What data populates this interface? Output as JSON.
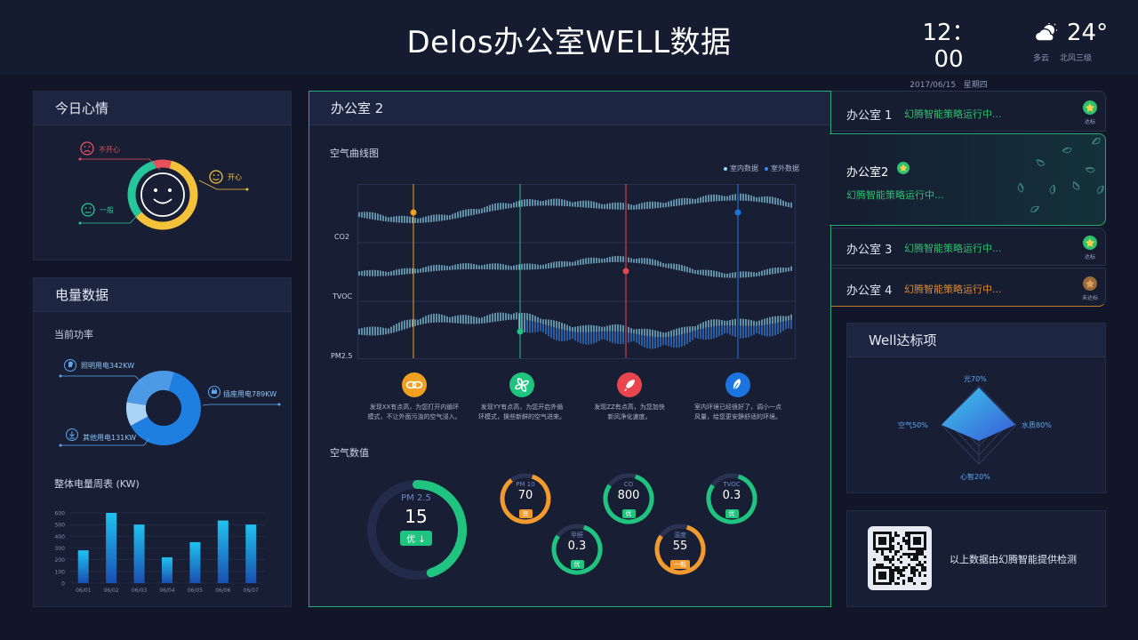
{
  "header": {
    "title": "Delos办公室WELL数据",
    "time": "12：00",
    "date": "2017/06/15",
    "weekday": "星期四",
    "temperature": "24°",
    "weather": "多云",
    "wind": "北风三级",
    "weather_icon": "cloud-sun-icon"
  },
  "mood": {
    "title": "今日心情",
    "labels": {
      "unhappy": "不开心",
      "happy": "开心",
      "neutral": "一般"
    },
    "share": {
      "unhappy": 0.08,
      "neutral": 0.32,
      "happy": 0.6
    },
    "colors": {
      "unhappy": "#e8505b",
      "happy": "#f3c23a",
      "neutral": "#27c59a"
    }
  },
  "power": {
    "title": "电量数据",
    "current_label": "当前功率",
    "lighting": "照明用电342KW",
    "socket": "插座用电789KW",
    "other": "其他用电131KW",
    "weekly_title": "整体电量周表 (KW)",
    "donut_values": [
      342,
      789,
      131
    ]
  },
  "office_main": {
    "title": "办公室 2",
    "curve_title": "空气曲线图",
    "legend_indoor": "室内数据",
    "legend_outdoor": "室外数据",
    "row_labels": [
      "CO2",
      "TVOC",
      "PM2.5"
    ],
    "tips": [
      {
        "text1": "发现XX有点高，为您打开内循环",
        "text2": "模式，不让外面污浊的空气浸入。",
        "color": "#f0a020",
        "icon": "link-icon"
      },
      {
        "text1": "发现YY有点高，为您开启外循",
        "text2": "环模式，换些新鲜的空气进来。",
        "color": "#1fc47f",
        "icon": "fan-icon"
      },
      {
        "text1": "发现ZZ有点高，为您加快",
        "text2": "新风净化速度。",
        "color": "#e8454d",
        "icon": "rocket-icon"
      },
      {
        "text1": "室内环境已经很好了，调小一点",
        "text2": "风量，给您更安静舒适的环境。",
        "color": "#1b74e0",
        "icon": "leaf-icon"
      }
    ],
    "values_title": "空气数值",
    "main_gauge": {
      "name": "PM 2.5",
      "value": "15",
      "badge": "优 ↓",
      "fraction": 0.45
    },
    "gauges": [
      {
        "name": "PM 10",
        "value": "70",
        "badge": "良",
        "color": "#f29a2e",
        "fraction": 0.85
      },
      {
        "name": "CO",
        "value": "800",
        "badge": "优",
        "color": "#1fc47f",
        "fraction": 0.8
      },
      {
        "name": "TVOC",
        "value": "0.3",
        "badge": "优",
        "color": "#1fc47f",
        "fraction": 0.8
      },
      {
        "name": "甲醛",
        "value": "0.3",
        "badge": "优",
        "color": "#1fc47f",
        "fraction": 0.8
      },
      {
        "name": "湿度",
        "value": "55",
        "badge": "一般",
        "color": "#f29a2e",
        "fraction": 0.8
      }
    ]
  },
  "offices": [
    {
      "name": "办公室 1",
      "status": "幻腾智能策略运行中...",
      "medal": "达标"
    },
    {
      "name": "办公室2",
      "status": "幻腾智能策略运行中..."
    },
    {
      "name": "办公室 3",
      "status": "幻腾智能策略运行中...",
      "medal": "达标"
    },
    {
      "name": "办公室 4",
      "status": "幻腾智能策略运行中...",
      "medal": "未达标"
    }
  ],
  "well": {
    "title": "Well达标项",
    "light": "光70%",
    "water": "水质80%",
    "mind": "心智20%",
    "air": "空气50%"
  },
  "qr": {
    "text": "以上数据由幻腾智能提供检测"
  },
  "chart_data": {
    "type": "bar",
    "title": "整体电量周表 (KW)",
    "categories": [
      "06/01",
      "06/02",
      "06/03",
      "06/04",
      "06/05",
      "06/06",
      "06/07"
    ],
    "values": [
      280,
      600,
      500,
      220,
      350,
      535,
      500
    ],
    "yticks": [
      "600",
      "500",
      "400",
      "300",
      "200",
      "100",
      "0"
    ],
    "ylim": [
      0,
      600
    ],
    "grid": true
  }
}
